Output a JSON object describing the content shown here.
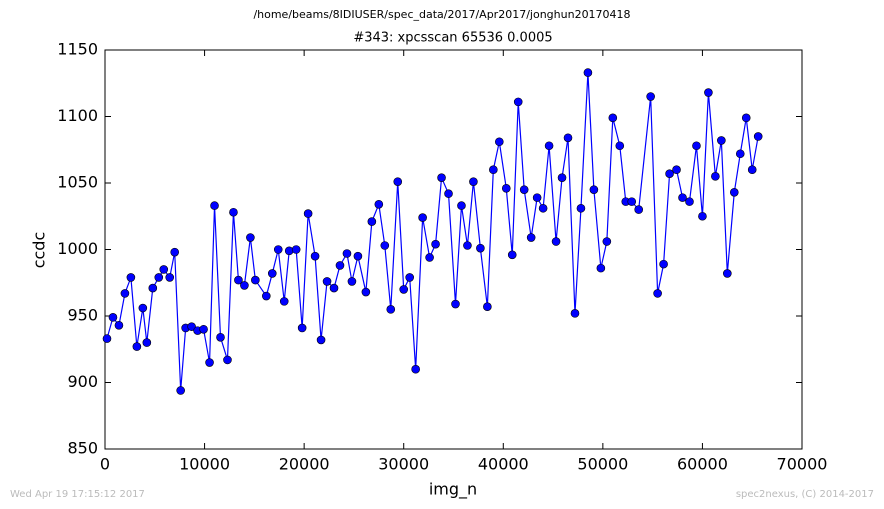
{
  "chart_data": {
    "type": "line",
    "suptitle": "/home/beams/8IDIUSER/spec_data/2017/Apr2017/jonghun20170418",
    "title": "#343: xpcsscan 65536 0.0005",
    "xlabel": "img_n",
    "ylabel": "ccdc",
    "xlim": [
      0,
      70000
    ],
    "xticks": [
      0,
      10000,
      20000,
      30000,
      40000,
      50000,
      60000,
      70000
    ],
    "ylim": [
      850,
      1150
    ],
    "yticks": [
      850,
      900,
      950,
      1000,
      1050,
      1100,
      1150
    ],
    "x": [
      200,
      800,
      1400,
      2000,
      2600,
      3200,
      3800,
      4200,
      4800,
      5400,
      5900,
      6500,
      7000,
      7600,
      8100,
      8700,
      9300,
      9900,
      10500,
      11000,
      11600,
      12300,
      12900,
      13400,
      14000,
      14600,
      15100,
      16200,
      16800,
      17400,
      18000,
      18500,
      19200,
      19800,
      20400,
      21100,
      21700,
      22300,
      23000,
      23600,
      24300,
      24800,
      25400,
      26200,
      26800,
      27500,
      28100,
      28700,
      29400,
      30000,
      30600,
      31200,
      31900,
      32600,
      33200,
      33800,
      34500,
      35200,
      35800,
      36400,
      37000,
      37700,
      38400,
      39000,
      39600,
      40300,
      40900,
      41500,
      42100,
      42800,
      43400,
      44000,
      44600,
      45300,
      45900,
      46500,
      47200,
      47800,
      48500,
      49100,
      49800,
      50400,
      51000,
      51700,
      52300,
      52900,
      53600,
      54800,
      55500,
      56100,
      56700,
      57400,
      58000,
      58700,
      59400,
      60000,
      60600,
      61300,
      61900,
      62500,
      63200,
      63800,
      64400,
      65000,
      65600
    ],
    "series": [
      {
        "name": "ccdc",
        "color": "#0000ff",
        "values": [
          933,
          949,
          943,
          967,
          979,
          927,
          956,
          930,
          971,
          979,
          985,
          979,
          998,
          894,
          941,
          942,
          939,
          940,
          915,
          1033,
          934,
          917,
          1028,
          977,
          973,
          1009,
          977,
          965,
          982,
          1000,
          961,
          999,
          1000,
          941,
          1027,
          995,
          932,
          976,
          971,
          988,
          997,
          976,
          995,
          968,
          1021,
          1034,
          1003,
          955,
          1051,
          970,
          979,
          910,
          1024,
          994,
          1004,
          1054,
          1042,
          959,
          1033,
          1003,
          1051,
          1001,
          957,
          1060,
          1081,
          1046,
          996,
          1111,
          1045,
          1009,
          1039,
          1031,
          1078,
          1006,
          1054,
          1084,
          952,
          1031,
          1133,
          1045,
          986,
          1006,
          1099,
          1078,
          1036,
          1036,
          1030,
          1115,
          967,
          989,
          1057,
          1060,
          1039,
          1036,
          1078,
          1025,
          1118,
          1055,
          1082,
          982,
          1043,
          1072,
          1099,
          1060,
          1085
        ]
      }
    ]
  },
  "footer_left": "Wed Apr 19 17:15:12 2017",
  "footer_right": "spec2nexus, (C) 2014-2017"
}
